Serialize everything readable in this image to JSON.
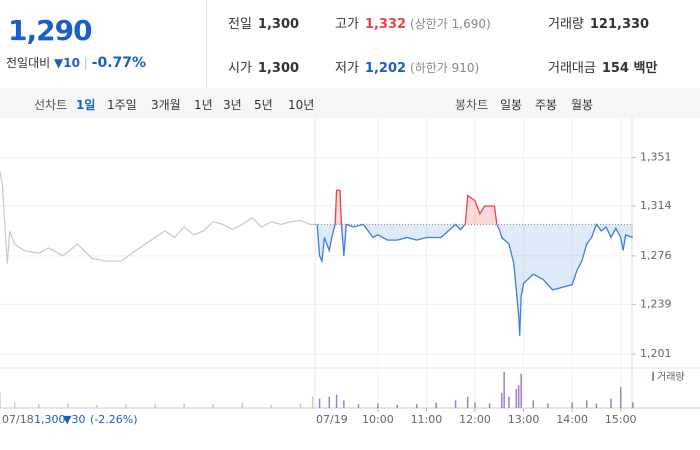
{
  "header": {
    "price": "1,290",
    "change_label": "전일대비",
    "change": "▼10",
    "rate": "-0.77%",
    "stats": [
      {
        "label": "전일",
        "value": "1,300"
      },
      {
        "label": "고가",
        "value": "1,332",
        "note": "(상한가 1,690)"
      },
      {
        "label": "거래량",
        "value": "121,330"
      },
      {
        "label": "시가",
        "value": "1,300"
      },
      {
        "label": "저가",
        "value": "1,202",
        "note": "(하한가 910)"
      },
      {
        "label": "거래대금",
        "value": "154 백만"
      }
    ]
  },
  "toolbar": {
    "line_chart": "선차트",
    "periods": [
      "1일",
      "1주일",
      "3개월",
      "1년",
      "3년",
      "5년",
      "10년"
    ],
    "candle_chart": "봉차트",
    "candle_periods": [
      "일봉",
      "주봉",
      "월봉"
    ]
  },
  "chart_data": {
    "type": "line",
    "ylim": [
      1195,
      1372
    ],
    "yticks": [
      {
        "value": 1351,
        "label": "1,351"
      },
      {
        "value": 1314,
        "label": "1,314"
      },
      {
        "value": 1276,
        "label": "1,276"
      },
      {
        "value": 1239,
        "label": "1,239"
      },
      {
        "value": 1201,
        "label": "1,201"
      }
    ],
    "xlim": [
      8.5,
      15.5
    ],
    "xticks": [
      {
        "value": 10,
        "label": "10:00"
      },
      {
        "value": 11,
        "label": "11:00"
      },
      {
        "value": 12,
        "label": "12:00"
      },
      {
        "value": 13,
        "label": "13:00"
      },
      {
        "value": 14,
        "label": "14:00"
      },
      {
        "value": 15,
        "label": "15:00"
      }
    ],
    "prev_xlim": [
      9,
      15.5
    ],
    "prev_close": 1300,
    "grid": true,
    "prev_summary": {
      "close": "1,300",
      "change": "▼30",
      "rate": "(-2.26%)"
    },
    "series": [
      {
        "name": "07/18",
        "color": "#c8c8c8",
        "x": [
          9.0,
          9.05,
          9.1,
          9.15,
          9.2,
          9.3,
          9.5,
          9.8,
          10.0,
          10.3,
          10.6,
          10.9,
          11.2,
          11.5,
          11.8,
          12.0,
          12.2,
          12.4,
          12.6,
          12.8,
          13.0,
          13.2,
          13.4,
          13.6,
          13.8,
          14.0,
          14.2,
          14.4,
          14.6,
          14.8,
          15.0,
          15.2,
          15.4,
          15.5
        ],
        "values": [
          1340,
          1330,
          1300,
          1270,
          1295,
          1285,
          1280,
          1278,
          1282,
          1276,
          1285,
          1274,
          1272,
          1272,
          1280,
          1285,
          1290,
          1295,
          1290,
          1298,
          1292,
          1295,
          1302,
          1300,
          1296,
          1300,
          1305,
          1298,
          1302,
          1300,
          1302,
          1303,
          1300,
          1300
        ]
      },
      {
        "name": "07/19",
        "color": "#3b7fd9",
        "up_color": "#e8434a",
        "x": [
          8.75,
          8.8,
          8.85,
          8.9,
          9.0,
          9.05,
          9.12,
          9.15,
          9.22,
          9.25,
          9.3,
          9.35,
          9.5,
          9.7,
          9.9,
          10.0,
          10.2,
          10.4,
          10.6,
          10.8,
          11.0,
          11.3,
          11.6,
          11.7,
          11.8,
          11.85,
          12.0,
          12.1,
          12.2,
          12.4,
          12.45,
          12.5,
          12.55,
          12.7,
          12.8,
          12.85,
          12.9,
          12.92,
          12.95,
          13.0,
          13.2,
          13.4,
          13.6,
          13.8,
          14.0,
          14.1,
          14.2,
          14.3,
          14.4,
          14.5,
          14.6,
          14.7,
          14.8,
          14.9,
          15.0,
          15.05,
          15.1,
          15.25
        ],
        "values": [
          1300,
          1276,
          1272,
          1290,
          1280,
          1290,
          1300,
          1326,
          1326,
          1300,
          1276,
          1300,
          1298,
          1300,
          1290,
          1292,
          1288,
          1288,
          1290,
          1288,
          1290,
          1290,
          1300,
          1296,
          1300,
          1322,
          1318,
          1308,
          1314,
          1314,
          1300,
          1296,
          1290,
          1285,
          1270,
          1250,
          1230,
          1215,
          1245,
          1255,
          1262,
          1258,
          1250,
          1252,
          1254,
          1265,
          1272,
          1285,
          1290,
          1300,
          1295,
          1298,
          1290,
          1297,
          1290,
          1280,
          1292,
          1290
        ]
      }
    ],
    "volume": {
      "name": "거래량",
      "color": "#9d7fd0",
      "prev_color": "#c8c8c8",
      "ylim": [
        0,
        100
      ],
      "prev": {
        "x": [
          9.0,
          9.3,
          9.8,
          10.4,
          11.0,
          11.6,
          12.2,
          12.8,
          13.4,
          14.0,
          14.6,
          15.2,
          15.45
        ],
        "values": [
          40,
          15,
          10,
          12,
          8,
          10,
          9,
          12,
          10,
          14,
          8,
          12,
          30
        ]
      },
      "today": {
        "x": [
          8.8,
          9.0,
          9.15,
          9.3,
          9.6,
          10.0,
          10.4,
          10.8,
          11.2,
          11.6,
          11.85,
          12.0,
          12.3,
          12.55,
          12.6,
          12.7,
          12.85,
          12.9,
          12.95,
          13.2,
          13.5,
          14.0,
          14.3,
          14.5,
          14.8,
          15.0,
          15.25
        ],
        "values": [
          25,
          30,
          35,
          20,
          10,
          12,
          8,
          10,
          14,
          20,
          30,
          15,
          12,
          40,
          95,
          30,
          50,
          60,
          90,
          20,
          12,
          15,
          20,
          12,
          25,
          55,
          15
        ]
      }
    }
  }
}
